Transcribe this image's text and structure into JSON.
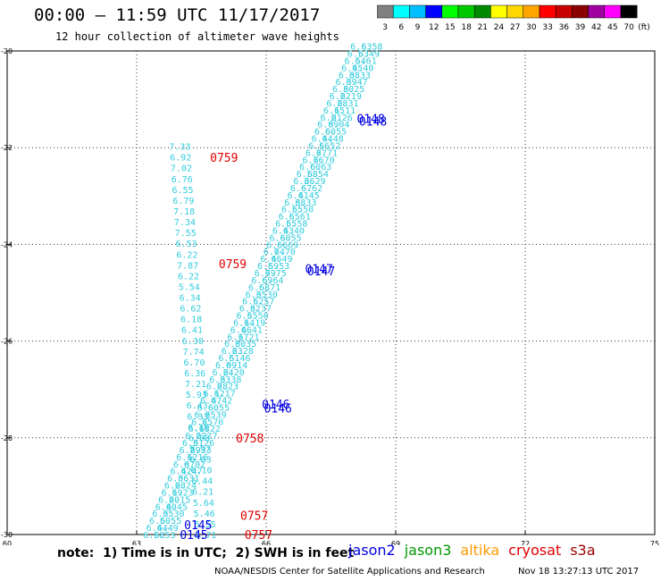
{
  "header": {
    "title": "00:00 – 11:59 UTC 11/17/2017",
    "subtitle": "12 hour collection of altimeter wave heights"
  },
  "colorbar": {
    "unit_label": "(ft)",
    "ticks": [
      "3",
      "6",
      "9",
      "12",
      "15",
      "18",
      "21",
      "24",
      "27",
      "30",
      "33",
      "36",
      "39",
      "42",
      "45",
      "70"
    ],
    "colors": [
      "#808080",
      "#00ffff",
      "#00bfff",
      "#0000ff",
      "#00ff00",
      "#00c800",
      "#008800",
      "#ffff00",
      "#ffd700",
      "#ffa500",
      "#ff0000",
      "#c80000",
      "#8b0000",
      "#a000a0",
      "#ff00ff",
      "#000000"
    ]
  },
  "footer": {
    "note": "note:  1) Time is in UTC;  2) SWH is in feet",
    "legend": [
      {
        "name": "jason2",
        "color": "#0000e0"
      },
      {
        "name": "jason3",
        "color": "#009900"
      },
      {
        "name": "altika",
        "color": "#ff9900"
      },
      {
        "name": "cryosat",
        "color": "#e00000"
      },
      {
        "name": "s3a",
        "color": "#990000"
      }
    ],
    "credit": "NOAA/NESDIS Center for Satellite Applications and Research",
    "timestamp": "Nov 18 13:27:13 UTC 2017"
  },
  "chart_data": {
    "type": "scatter",
    "title": "00:00 – 11:59 UTC 11/17/2017",
    "subtitle": "12 hour collection of altimeter wave heights",
    "xlim": [
      60,
      75
    ],
    "ylim": [
      -30,
      -20
    ],
    "xticks": [
      60,
      63,
      66,
      69,
      72,
      75
    ],
    "yticks": [
      -20,
      -22,
      -24,
      -26,
      -28,
      -30
    ],
    "grid": true,
    "grid_style": "dotted",
    "legend_position": "bottom-right",
    "point_color": "#33ccdd",
    "west_track": {
      "x_start": 64.0,
      "y_start": -21.97,
      "x_end": 64.6,
      "y_end": -30.0,
      "values": [
        "7.33",
        "6.92",
        "7.02",
        "6.76",
        "6.55",
        "6.79",
        "7.18",
        "7.34",
        "7.55",
        "6.53",
        "6.22",
        "7.87",
        "6.22",
        "5.54",
        "6.34",
        "6.62",
        "6.18",
        "6.41",
        "6.30",
        "7.74",
        "6.70",
        "6.36",
        "7.21",
        "5.93",
        "6.43",
        "6.33",
        "6.10",
        "6.08",
        "5.97",
        "6.03",
        "6.10",
        "6.44",
        "6.21",
        "5.64",
        "5.46",
        "5.55",
        "5.71"
      ]
    },
    "east_track_a": {
      "x_start": 68.2,
      "y_start": -19.9,
      "x_end": 63.4,
      "y_end": -30.0,
      "values": [
        "6.63",
        "6.53",
        "6.54",
        "6.45",
        "6.38",
        "6.39",
        "6.30",
        "6.22",
        "6.28",
        "6.15",
        "6.21",
        "6.09",
        "6.60",
        "6.44",
        "6.56",
        "6.77",
        "6.76",
        "6.60",
        "6.58",
        "6.26",
        "6.67",
        "6.41",
        "6.38",
        "6.55",
        "6.65",
        "6.55",
        "6.43",
        "6.60",
        "6.66",
        "6.74",
        "6.46",
        "6.59",
        "6.79",
        "6.69",
        "6.68",
        "6.35",
        "6.52",
        "6.32",
        "6.55",
        "6.14",
        "6.46",
        "6.17",
        "6.30",
        "6.23",
        "6.51",
        "6.09",
        "6.24",
        "6.33",
        "6.28",
        "6.12",
        "6.47",
        "6.60",
        "6.35",
        "6.75",
        "6.18",
        "6.22",
        "6.31",
        "6.29",
        "6.12",
        "6.07",
        "6.42",
        "6.36",
        "6.28",
        "6.19",
        "6.20",
        "6.40",
        "6.35",
        "6.50",
        "6.44",
        "6.58"
      ]
    },
    "east_track_b": {
      "x_start": 68.45,
      "y_start": -19.9,
      "x_end": 63.65,
      "y_end": -30.0,
      "values": [
        "6.58",
        "6.49",
        "6.61",
        "6.40",
        "6.33",
        "6.47",
        "6.25",
        "6.19",
        "6.31",
        "6.11",
        "6.26",
        "6.04",
        "6.55",
        "6.48",
        "6.52",
        "6.71",
        "6.70",
        "6.63",
        "6.54",
        "6.29",
        "6.62",
        "6.45",
        "6.33",
        "6.50",
        "6.61",
        "6.58",
        "6.40",
        "6.55",
        "6.69",
        "6.70",
        "6.49",
        "6.53",
        "6.75",
        "6.64",
        "6.71",
        "6.30",
        "6.57",
        "6.37",
        "6.50",
        "6.19",
        "6.41",
        "6.21",
        "6.35",
        "6.28",
        "6.46",
        "6.14",
        "6.20",
        "6.38",
        "6.23",
        "6.17",
        "6.42",
        "6.55",
        "6.39",
        "6.70",
        "6.22",
        "6.27",
        "6.26",
        "6.33",
        "6.16",
        "6.02",
        "6.47",
        "6.31",
        "6.24",
        "6.23",
        "6.15",
        "6.45",
        "6.30",
        "6.55",
        "6.49",
        "6.53"
      ]
    },
    "time_labels": [
      {
        "text": "0759",
        "x": 64.7,
        "y": -22.2,
        "color": "#e00000"
      },
      {
        "text": "0759",
        "x": 64.9,
        "y": -24.4,
        "color": "#e00000"
      },
      {
        "text": "0758",
        "x": 65.3,
        "y": -28.0,
        "color": "#e00000"
      },
      {
        "text": "0757",
        "x": 65.4,
        "y": -29.6,
        "color": "#e00000"
      },
      {
        "text": "0757",
        "x": 65.5,
        "y": -30.0,
        "color": "#e00000"
      },
      {
        "text": "0148",
        "x": 68.1,
        "y": -21.4,
        "color": "#0000e0"
      },
      {
        "text": "0148",
        "x": 68.15,
        "y": -21.45,
        "color": "#0000e0"
      },
      {
        "text": "0147",
        "x": 66.9,
        "y": -24.5,
        "color": "#0000e0"
      },
      {
        "text": "0147",
        "x": 66.95,
        "y": -24.55,
        "color": "#0000e0"
      },
      {
        "text": "0146",
        "x": 65.9,
        "y": -27.3,
        "color": "#0000e0"
      },
      {
        "text": "0146",
        "x": 65.95,
        "y": -27.38,
        "color": "#0000e0"
      },
      {
        "text": "0145",
        "x": 64.1,
        "y": -29.8,
        "color": "#0000e0"
      },
      {
        "text": "0145",
        "x": 64.0,
        "y": -30.0,
        "color": "#0000e0"
      }
    ]
  }
}
